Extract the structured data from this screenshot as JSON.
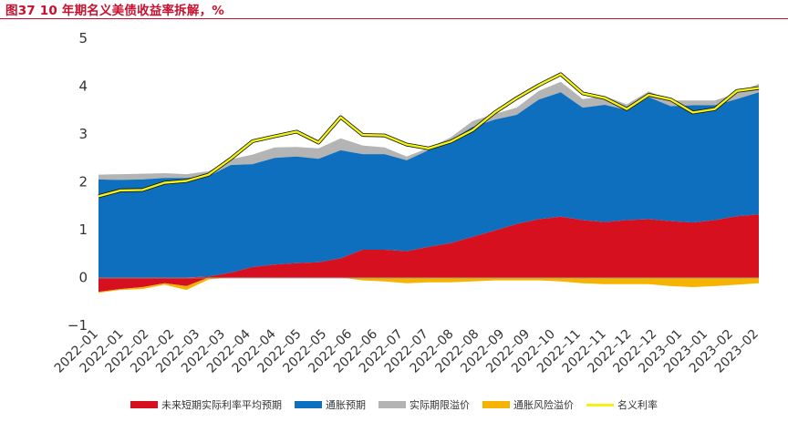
{
  "title": "图37  10 年期名义美债收益率拆解，%",
  "colors": {
    "title": "#c8102e",
    "real_expected": "#d7101f",
    "inflation_expected": "#0d6fbd",
    "term_premium": "#b4b4b4",
    "inflation_risk": "#f5b400",
    "nominal": "#f2f215",
    "nominal_outline": "#111111"
  },
  "chart_data": {
    "type": "area",
    "ylim": [
      -1,
      5
    ],
    "yticks": [
      "5",
      "4",
      "3",
      "2",
      "1",
      "0",
      "−1"
    ],
    "x_tick_labels": [
      "2022–01",
      "2022–01",
      "2022–02",
      "2022–02",
      "2022–03",
      "2022–03",
      "2022–04",
      "2022–04",
      "2022–05",
      "2022–05",
      "2022–06",
      "2022–06",
      "2022–07",
      "2022–07",
      "2022–08",
      "2022–08",
      "2022–09",
      "2022–09",
      "2022–10",
      "2022–11",
      "2022–11",
      "2022–12",
      "2022–12",
      "2023–01",
      "2023–01",
      "2023–02",
      "2023–02"
    ],
    "legend": [
      "未来短期实际利率平均预期",
      "通胀预期",
      "实际期限溢价",
      "通胀风险溢价",
      "名义利率"
    ],
    "x": [
      "2022-01-03",
      "2022-01-17",
      "2022-01-31",
      "2022-02-14",
      "2022-02-28",
      "2022-03-14",
      "2022-03-28",
      "2022-04-11",
      "2022-04-25",
      "2022-05-09",
      "2022-05-23",
      "2022-06-06",
      "2022-06-20",
      "2022-07-04",
      "2022-07-18",
      "2022-08-01",
      "2022-08-15",
      "2022-08-29",
      "2022-09-12",
      "2022-09-26",
      "2022-10-10",
      "2022-10-24",
      "2022-11-07",
      "2022-11-21",
      "2022-12-05",
      "2022-12-19",
      "2023-01-02",
      "2023-01-16",
      "2023-01-30",
      "2023-02-13",
      "2023-02-27"
    ],
    "series": [
      {
        "name": "未来短期实际利率平均预期",
        "values": [
          -0.3,
          -0.24,
          -0.2,
          -0.12,
          -0.18,
          0.02,
          0.1,
          0.22,
          0.27,
          0.3,
          0.32,
          0.4,
          0.58,
          0.58,
          0.55,
          0.64,
          0.72,
          0.85,
          0.98,
          1.12,
          1.22,
          1.27,
          1.2,
          1.16,
          1.2,
          1.22,
          1.18,
          1.15,
          1.2,
          1.28,
          1.32
        ]
      },
      {
        "name": "通胀预期",
        "values": [
          2.05,
          2.04,
          2.05,
          2.08,
          2.08,
          2.1,
          2.25,
          2.15,
          2.23,
          2.23,
          2.16,
          2.26,
          2.0,
          2.0,
          1.9,
          2.02,
          2.15,
          2.3,
          2.32,
          2.28,
          2.5,
          2.6,
          2.35,
          2.45,
          2.3,
          2.55,
          2.4,
          2.45,
          2.4,
          2.45,
          2.55
        ]
      },
      {
        "name": "实际期限溢价",
        "values": [
          0.1,
          0.12,
          0.12,
          0.1,
          0.08,
          0.1,
          0.12,
          0.2,
          0.22,
          0.2,
          0.22,
          0.25,
          0.18,
          0.14,
          0.08,
          0.05,
          0.06,
          0.12,
          0.12,
          0.15,
          0.18,
          0.22,
          0.18,
          0.18,
          0.12,
          0.12,
          0.12,
          0.1,
          0.1,
          0.12,
          0.18
        ]
      },
      {
        "name": "通胀风险溢价",
        "values": [
          -0.02,
          -0.02,
          -0.04,
          -0.03,
          -0.08,
          -0.04,
          0.0,
          0.0,
          0.0,
          0.0,
          0.0,
          0.0,
          -0.06,
          -0.08,
          -0.12,
          -0.1,
          -0.1,
          -0.08,
          -0.06,
          -0.06,
          -0.06,
          -0.08,
          -0.12,
          -0.14,
          -0.14,
          -0.14,
          -0.18,
          -0.2,
          -0.18,
          -0.15,
          -0.12
        ]
      },
      {
        "name": "名义利率",
        "values": [
          1.7,
          1.82,
          1.83,
          1.98,
          2.02,
          2.15,
          2.48,
          2.85,
          2.95,
          3.05,
          2.82,
          3.35,
          2.98,
          2.97,
          2.78,
          2.7,
          2.84,
          3.08,
          3.45,
          3.75,
          4.02,
          4.25,
          3.85,
          3.75,
          3.52,
          3.82,
          3.72,
          3.45,
          3.52,
          3.9,
          3.96
        ]
      }
    ]
  }
}
